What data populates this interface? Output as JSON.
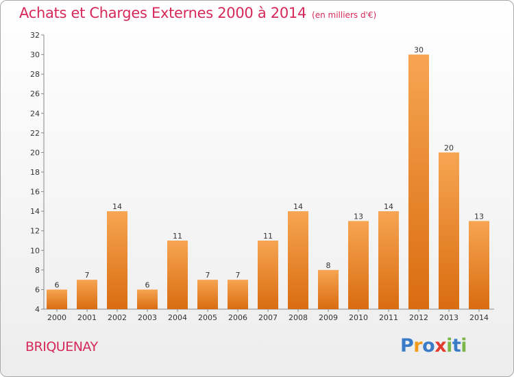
{
  "title": "Achats et Charges Externes 2000 à 2014",
  "unit": "(en milliers d'€)",
  "commune": "BRIQUENAY",
  "logo": {
    "text": "Proxiti",
    "letters": [
      {
        "ch": "P",
        "color": "#3a7bc8"
      },
      {
        "ch": "r",
        "color": "#f29a1c"
      },
      {
        "ch": "o",
        "color": "#3a7bc8"
      },
      {
        "ch": "x",
        "color": "#e23b2e"
      },
      {
        "ch": "i",
        "color": "#7ab648"
      },
      {
        "ch": "t",
        "color": "#3a7bc8"
      },
      {
        "ch": "i",
        "color": "#7ab648"
      }
    ]
  },
  "chart_data": {
    "type": "bar",
    "title": "Achats et Charges Externes 2000 à 2014",
    "subtitle": "(en milliers d'€)",
    "xlabel": "",
    "ylabel": "",
    "categories": [
      "2000",
      "2001",
      "2002",
      "2003",
      "2004",
      "2005",
      "2006",
      "2007",
      "2008",
      "2009",
      "2010",
      "2011",
      "2012",
      "2013",
      "2014"
    ],
    "values": [
      6,
      7,
      14,
      6,
      11,
      7,
      7,
      11,
      14,
      8,
      13,
      14,
      30,
      20,
      13
    ],
    "ylim": [
      4,
      32
    ],
    "yticks": [
      4,
      6,
      8,
      10,
      12,
      14,
      16,
      18,
      20,
      22,
      24,
      26,
      28,
      30,
      32
    ],
    "grid": false,
    "legend": "none",
    "bar_color": "#f0922e"
  }
}
